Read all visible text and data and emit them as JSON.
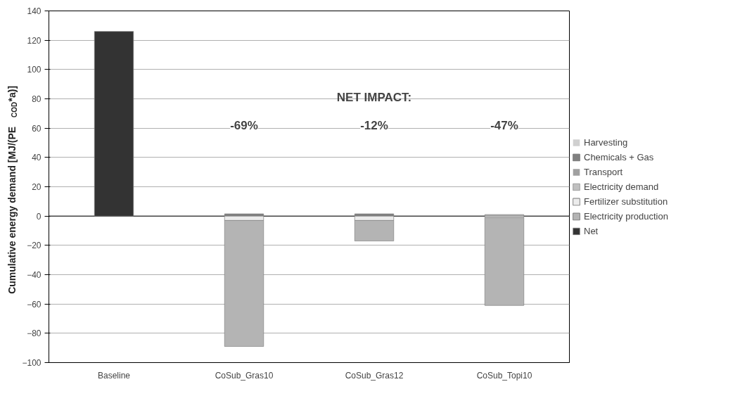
{
  "chart_data": {
    "type": "bar",
    "stacked": true,
    "ylabel": "Cumulative energy demand [MJ/(PE$_{COD}$*a)]",
    "categories": [
      "Baseline",
      "CoSub_Gras10",
      "CoSub_Gras12",
      "CoSub_Topi10"
    ],
    "series": [
      {
        "name": "Harvesting",
        "color": "#d0d0d0",
        "values": [
          null,
          null,
          null,
          null
        ]
      },
      {
        "name": "Chemicals + Gas",
        "color": "#808080",
        "values": [
          null,
          1.5,
          1.5,
          null
        ]
      },
      {
        "name": "Transport",
        "color": "#a0a0a0",
        "values": [
          null,
          null,
          null,
          null
        ]
      },
      {
        "name": "Electricity demand",
        "color": "#c0c0c0",
        "values": [
          null,
          null,
          null,
          1
        ]
      },
      {
        "name": "Fertilizer substitution",
        "color": "#ececec",
        "values": [
          null,
          -3,
          -3,
          -1
        ]
      },
      {
        "name": "Electricity production",
        "color": "#b4b4b4",
        "values": [
          null,
          -86,
          -14,
          -60
        ]
      },
      {
        "name": "Net",
        "color": "#333333",
        "values": [
          126,
          null,
          null,
          null
        ]
      }
    ],
    "ylim": [
      -100,
      140
    ],
    "yticks": [
      -100,
      -80,
      -60,
      -40,
      -20,
      0,
      20,
      40,
      60,
      80,
      100,
      120,
      140
    ],
    "grid": "y",
    "legend": "right",
    "annotations": [
      "NET IMPACT:",
      {
        "text": "-69%",
        "x": "CoSub_Gras10",
        "y": 62
      },
      {
        "text": "-12%",
        "x": "CoSub_Gras12",
        "y": 62
      },
      {
        "text": "-47%",
        "x": "CoSub_Topi10",
        "y": 62
      }
    ]
  }
}
